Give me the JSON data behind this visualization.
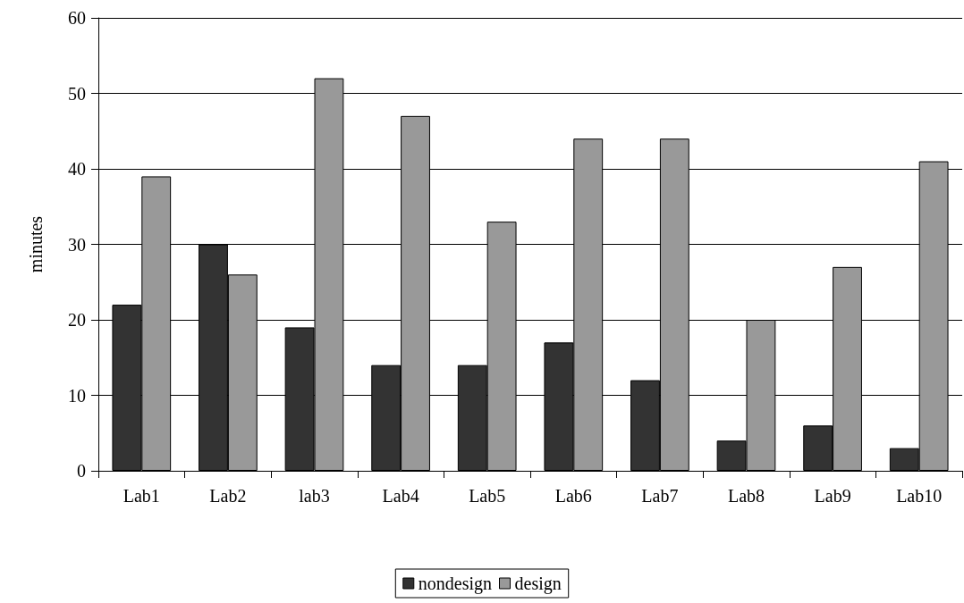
{
  "chart_data": {
    "type": "bar",
    "ylabel": "minutes",
    "categories": [
      "Lab1",
      "Lab2",
      "lab3",
      "Lab4",
      "Lab5",
      "Lab6",
      "Lab7",
      "Lab8",
      "Lab9",
      "Lab10"
    ],
    "series": [
      {
        "name": "nondesign",
        "color": "#333333",
        "values": [
          22,
          30,
          19,
          14,
          14,
          17,
          12,
          4,
          6,
          3
        ]
      },
      {
        "name": "design",
        "color": "#999999",
        "values": [
          39,
          26,
          52,
          47,
          33,
          44,
          44,
          20,
          27,
          41
        ]
      }
    ],
    "ylim": [
      0,
      60
    ],
    "yticks": [
      0,
      10,
      20,
      30,
      40,
      50,
      60
    ],
    "grid": "y",
    "legend": "bottom"
  }
}
